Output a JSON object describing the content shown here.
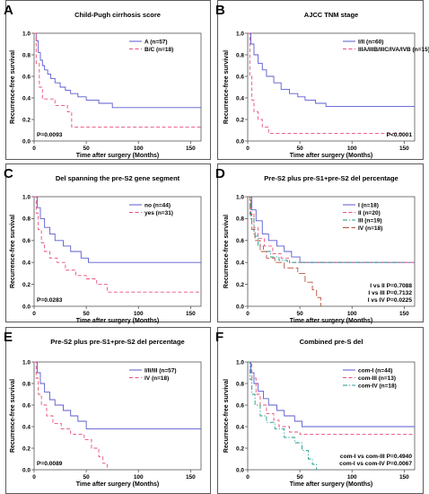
{
  "chart_data": [
    {
      "panel": "A",
      "type": "line",
      "title": "Child-Pugh cirrhosis score",
      "xlabel": "Time after surgery (Months)",
      "ylabel": "Recurrence-free survival",
      "xlim": [
        0,
        160
      ],
      "ylim": [
        0,
        1.0
      ],
      "xticks": [
        0,
        50,
        100,
        150
      ],
      "yticks": [
        0.0,
        0.2,
        0.4,
        0.6,
        0.8,
        1.0
      ],
      "legend_position": "top-right",
      "annotations": [
        "P=0.0093"
      ],
      "annotation_position": "bottom-left",
      "series": [
        {
          "name": "A (n=57)",
          "color": "#5a5ad2",
          "dash": "solid",
          "points": [
            [
              0,
              1.0
            ],
            [
              2,
              0.93
            ],
            [
              4,
              0.82
            ],
            [
              6,
              0.75
            ],
            [
              8,
              0.7
            ],
            [
              10,
              0.66
            ],
            [
              13,
              0.62
            ],
            [
              16,
              0.58
            ],
            [
              20,
              0.54
            ],
            [
              25,
              0.5
            ],
            [
              30,
              0.47
            ],
            [
              35,
              0.44
            ],
            [
              42,
              0.41
            ],
            [
              50,
              0.38
            ],
            [
              62,
              0.35
            ],
            [
              75,
              0.31
            ],
            [
              160,
              0.31
            ]
          ]
        },
        {
          "name": "B/C (n=18)",
          "color": "#e8507a",
          "dash": "dashed",
          "points": [
            [
              0,
              1.0
            ],
            [
              2,
              0.72
            ],
            [
              5,
              0.5
            ],
            [
              8,
              0.39
            ],
            [
              20,
              0.33
            ],
            [
              32,
              0.27
            ],
            [
              36,
              0.13
            ],
            [
              160,
              0.13
            ]
          ]
        }
      ]
    },
    {
      "panel": "B",
      "type": "line",
      "title": "AJCC TNM stage",
      "xlabel": "Time after surgery (Months)",
      "ylabel": "Recurrence-free survival",
      "xlim": [
        0,
        160
      ],
      "ylim": [
        0,
        1.0
      ],
      "xticks": [
        0,
        50,
        100,
        150
      ],
      "yticks": [
        0.0,
        0.2,
        0.4,
        0.6,
        0.8,
        1.0
      ],
      "legend_position": "top-right",
      "annotations": [
        "P<0.0001"
      ],
      "annotation_position": "bottom-right",
      "series": [
        {
          "name": "I/II (n=60)",
          "color": "#5a5ad2",
          "dash": "solid",
          "points": [
            [
              0,
              1.0
            ],
            [
              3,
              0.9
            ],
            [
              6,
              0.8
            ],
            [
              10,
              0.72
            ],
            [
              14,
              0.66
            ],
            [
              18,
              0.6
            ],
            [
              25,
              0.54
            ],
            [
              32,
              0.48
            ],
            [
              40,
              0.44
            ],
            [
              48,
              0.41
            ],
            [
              55,
              0.38
            ],
            [
              65,
              0.35
            ],
            [
              75,
              0.32
            ],
            [
              160,
              0.32
            ]
          ]
        },
        {
          "name": "IIIA/IIIB/IIIC/IVA/IVB (n=15)",
          "color": "#e8507a",
          "dash": "dashed",
          "points": [
            [
              0,
              1.0
            ],
            [
              2,
              0.6
            ],
            [
              4,
              0.38
            ],
            [
              6,
              0.27
            ],
            [
              10,
              0.2
            ],
            [
              14,
              0.13
            ],
            [
              20,
              0.07
            ],
            [
              150,
              0.07
            ]
          ]
        }
      ]
    },
    {
      "panel": "C",
      "type": "line",
      "title": "Del spanning the pre-S2 gene segment",
      "xlabel": "Time after surgery (Months)",
      "ylabel": "Recurrence-free survival",
      "xlim": [
        0,
        160
      ],
      "ylim": [
        0,
        1.0
      ],
      "xticks": [
        0,
        50,
        100,
        150
      ],
      "yticks": [
        0.0,
        0.2,
        0.4,
        0.6,
        0.8,
        1.0
      ],
      "legend_position": "top-right",
      "annotations": [
        "P=0.0283"
      ],
      "annotation_position": "bottom-left",
      "series": [
        {
          "name": "no (n=44)",
          "color": "#5a5ad2",
          "dash": "solid",
          "points": [
            [
              0,
              1.0
            ],
            [
              3,
              0.9
            ],
            [
              6,
              0.8
            ],
            [
              10,
              0.72
            ],
            [
              15,
              0.66
            ],
            [
              20,
              0.6
            ],
            [
              28,
              0.55
            ],
            [
              35,
              0.5
            ],
            [
              45,
              0.44
            ],
            [
              52,
              0.4
            ],
            [
              160,
              0.4
            ]
          ]
        },
        {
          "name": "yes (n=31)",
          "color": "#e8507a",
          "dash": "dashed",
          "points": [
            [
              0,
              1.0
            ],
            [
              2,
              0.85
            ],
            [
              4,
              0.7
            ],
            [
              7,
              0.58
            ],
            [
              10,
              0.5
            ],
            [
              15,
              0.44
            ],
            [
              22,
              0.4
            ],
            [
              30,
              0.33
            ],
            [
              40,
              0.28
            ],
            [
              50,
              0.25
            ],
            [
              60,
              0.2
            ],
            [
              70,
              0.13
            ],
            [
              160,
              0.13
            ]
          ]
        }
      ]
    },
    {
      "panel": "D",
      "type": "line",
      "title": "Pre-S2 plus pre-S1+pre-S2 del percentage",
      "xlabel": "Time after surgery (Months)",
      "ylabel": "Recurrence-free survival",
      "xlim": [
        0,
        160
      ],
      "ylim": [
        0,
        1.0
      ],
      "xticks": [
        0,
        50,
        100,
        150
      ],
      "yticks": [
        0.0,
        0.2,
        0.4,
        0.6,
        0.8,
        1.0
      ],
      "legend_position": "top-right",
      "annotations": [
        "I vs II P=0.7088",
        "I vs III P=0.7132",
        "I vs IV P=0.0225"
      ],
      "annotation_position": "bottom-right",
      "series": [
        {
          "name": "I (n=18)",
          "color": "#5a5ad2",
          "dash": "solid",
          "points": [
            [
              0,
              1.0
            ],
            [
              4,
              0.88
            ],
            [
              8,
              0.78
            ],
            [
              14,
              0.66
            ],
            [
              20,
              0.6
            ],
            [
              28,
              0.55
            ],
            [
              35,
              0.5
            ],
            [
              42,
              0.45
            ],
            [
              50,
              0.4
            ],
            [
              160,
              0.4
            ]
          ]
        },
        {
          "name": "II (n=20)",
          "color": "#e8507a",
          "dash": "dashed",
          "points": [
            [
              0,
              1.0
            ],
            [
              3,
              0.85
            ],
            [
              6,
              0.72
            ],
            [
              10,
              0.62
            ],
            [
              16,
              0.55
            ],
            [
              24,
              0.48
            ],
            [
              32,
              0.44
            ],
            [
              40,
              0.4
            ],
            [
              160,
              0.4
            ]
          ]
        },
        {
          "name": "III (n=19)",
          "color": "#1a9a8a",
          "dash": "dashdot",
          "points": [
            [
              0,
              1.0
            ],
            [
              3,
              0.8
            ],
            [
              6,
              0.64
            ],
            [
              10,
              0.55
            ],
            [
              15,
              0.5
            ],
            [
              22,
              0.45
            ],
            [
              30,
              0.42
            ],
            [
              38,
              0.4
            ],
            [
              150,
              0.4
            ]
          ]
        },
        {
          "name": "IV (n=18)",
          "color": "#b5523a",
          "dash": "longdash",
          "points": [
            [
              0,
              1.0
            ],
            [
              2,
              0.84
            ],
            [
              4,
              0.7
            ],
            [
              7,
              0.6
            ],
            [
              12,
              0.5
            ],
            [
              18,
              0.44
            ],
            [
              26,
              0.4
            ],
            [
              35,
              0.35
            ],
            [
              48,
              0.3
            ],
            [
              55,
              0.22
            ],
            [
              62,
              0.15
            ],
            [
              66,
              0.08
            ],
            [
              70,
              0.0
            ]
          ]
        }
      ]
    },
    {
      "panel": "E",
      "type": "line",
      "title": "Pre-S2 plus pre-S1+pre-S2 del percentage",
      "xlabel": "Time after surgery (Months)",
      "ylabel": "Recurrence-free survival",
      "xlim": [
        0,
        160
      ],
      "ylim": [
        0,
        1.0
      ],
      "xticks": [
        0,
        50,
        100,
        150
      ],
      "yticks": [
        0.0,
        0.2,
        0.4,
        0.6,
        0.8,
        1.0
      ],
      "legend_position": "top-right",
      "annotations": [
        "P=0.0089"
      ],
      "annotation_position": "bottom-left",
      "series": [
        {
          "name": "I/II/III (n=57)",
          "color": "#5a5ad2",
          "dash": "solid",
          "points": [
            [
              0,
              1.0
            ],
            [
              3,
              0.9
            ],
            [
              6,
              0.8
            ],
            [
              10,
              0.72
            ],
            [
              15,
              0.65
            ],
            [
              20,
              0.6
            ],
            [
              28,
              0.55
            ],
            [
              35,
              0.5
            ],
            [
              42,
              0.45
            ],
            [
              50,
              0.38
            ],
            [
              160,
              0.38
            ]
          ]
        },
        {
          "name": "IV (n=18)",
          "color": "#e8507a",
          "dash": "dashed",
          "points": [
            [
              0,
              1.0
            ],
            [
              2,
              0.85
            ],
            [
              4,
              0.7
            ],
            [
              7,
              0.6
            ],
            [
              12,
              0.5
            ],
            [
              18,
              0.43
            ],
            [
              26,
              0.38
            ],
            [
              35,
              0.33
            ],
            [
              48,
              0.28
            ],
            [
              55,
              0.2
            ],
            [
              62,
              0.12
            ],
            [
              66,
              0.06
            ],
            [
              70,
              0.0
            ]
          ]
        }
      ]
    },
    {
      "panel": "F",
      "type": "line",
      "title": "Combined pre-S del",
      "xlabel": "Time after surgery (Months)",
      "ylabel": "Recurrence-free survival",
      "xlim": [
        0,
        160
      ],
      "ylim": [
        0,
        1.0
      ],
      "xticks": [
        0,
        50,
        100,
        150
      ],
      "yticks": [
        0.0,
        0.2,
        0.4,
        0.6,
        0.8,
        1.0
      ],
      "legend_position": "top-right",
      "annotations": [
        "com-I vs com-III P=0.4940",
        "com-I vs com-IV P=0.0067"
      ],
      "annotation_position": "bottom-right",
      "series": [
        {
          "name": "com-I (n=44)",
          "color": "#5a5ad2",
          "dash": "solid",
          "points": [
            [
              0,
              1.0
            ],
            [
              3,
              0.9
            ],
            [
              6,
              0.8
            ],
            [
              10,
              0.73
            ],
            [
              15,
              0.66
            ],
            [
              20,
              0.6
            ],
            [
              28,
              0.55
            ],
            [
              35,
              0.5
            ],
            [
              45,
              0.45
            ],
            [
              52,
              0.4
            ],
            [
              160,
              0.4
            ]
          ]
        },
        {
          "name": "com-III (n=13)",
          "color": "#e8507a",
          "dash": "dashed",
          "points": [
            [
              0,
              1.0
            ],
            [
              4,
              0.85
            ],
            [
              8,
              0.7
            ],
            [
              12,
              0.6
            ],
            [
              18,
              0.52
            ],
            [
              25,
              0.46
            ],
            [
              30,
              0.4
            ],
            [
              40,
              0.35
            ],
            [
              50,
              0.33
            ],
            [
              160,
              0.33
            ]
          ]
        },
        {
          "name": "com-IV (n=18)",
          "color": "#1a9a8a",
          "dash": "dashdot",
          "points": [
            [
              0,
              1.0
            ],
            [
              2,
              0.84
            ],
            [
              4,
              0.7
            ],
            [
              7,
              0.6
            ],
            [
              12,
              0.5
            ],
            [
              18,
              0.44
            ],
            [
              26,
              0.38
            ],
            [
              35,
              0.3
            ],
            [
              45,
              0.25
            ],
            [
              52,
              0.18
            ],
            [
              58,
              0.1
            ],
            [
              62,
              0.05
            ],
            [
              66,
              0.0
            ]
          ]
        }
      ]
    }
  ]
}
